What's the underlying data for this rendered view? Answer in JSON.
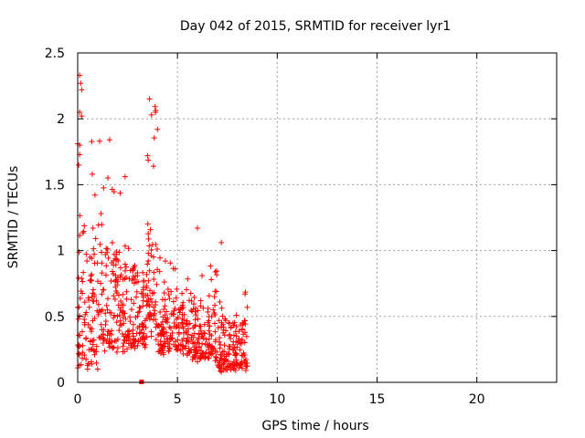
{
  "chart_data": {
    "type": "scatter",
    "title": "Day 042 of 2015, SRMTID for receiver lyr1",
    "xlabel": "GPS time / hours",
    "ylabel": "SRMTID / TECUs",
    "xlim": [
      0,
      24
    ],
    "ylim": [
      0,
      2.5
    ],
    "x_ticks": [
      0,
      5,
      10,
      15,
      20
    ],
    "x_tick_labels": [
      "0",
      "5",
      "10",
      "15",
      "20"
    ],
    "y_ticks": [
      0,
      0.5,
      1,
      1.5,
      2,
      2.5
    ],
    "y_tick_labels": [
      "0",
      "0.5",
      "1",
      "1.5",
      "2",
      "2.5"
    ],
    "grid": true,
    "marker": "+",
    "series": [
      {
        "name": "SRMTID",
        "color": "#ff0000",
        "x_range_hours": [
          0.0,
          8.5
        ],
        "peak_points": [
          {
            "x": 0.1,
            "y": 2.33
          },
          {
            "x": 0.15,
            "y": 2.27
          },
          {
            "x": 0.2,
            "y": 2.22
          },
          {
            "x": 0.1,
            "y": 2.05
          },
          {
            "x": 0.2,
            "y": 2.02
          },
          {
            "x": 0.0,
            "y": 1.81
          },
          {
            "x": 0.1,
            "y": 1.8
          },
          {
            "x": 1.1,
            "y": 1.83
          },
          {
            "x": 1.6,
            "y": 1.84
          },
          {
            "x": 3.6,
            "y": 2.15
          },
          {
            "x": 3.9,
            "y": 2.05
          },
          {
            "x": 3.7,
            "y": 2.03
          },
          {
            "x": 4.0,
            "y": 1.92
          },
          {
            "x": 3.5,
            "y": 1.72
          },
          {
            "x": 3.8,
            "y": 1.64
          },
          {
            "x": 6.0,
            "y": 1.17
          },
          {
            "x": 7.2,
            "y": 1.06
          },
          {
            "x": 0.5,
            "y": 0.1
          },
          {
            "x": 1.0,
            "y": 0.1
          },
          {
            "x": 7.2,
            "y": 0.08
          }
        ],
        "dense_band": [
          {
            "x_from": 0.0,
            "x_to": 1.0,
            "y_min": 0.1,
            "y_max": 1.9
          },
          {
            "x_from": 1.0,
            "x_to": 2.5,
            "y_min": 0.2,
            "y_max": 1.6
          },
          {
            "x_from": 2.5,
            "x_to": 3.5,
            "y_min": 0.25,
            "y_max": 1.3
          },
          {
            "x_from": 3.5,
            "x_to": 4.0,
            "y_min": 0.3,
            "y_max": 2.1
          },
          {
            "x_from": 4.0,
            "x_to": 5.5,
            "y_min": 0.2,
            "y_max": 1.0
          },
          {
            "x_from": 5.5,
            "x_to": 7.0,
            "y_min": 0.15,
            "y_max": 0.9
          },
          {
            "x_from": 7.0,
            "x_to": 8.5,
            "y_min": 0.08,
            "y_max": 0.75
          }
        ]
      }
    ],
    "annotations": [
      {
        "type": "square-marker",
        "x": 3.2,
        "y": 0.0,
        "color": "#ff0000"
      }
    ]
  }
}
